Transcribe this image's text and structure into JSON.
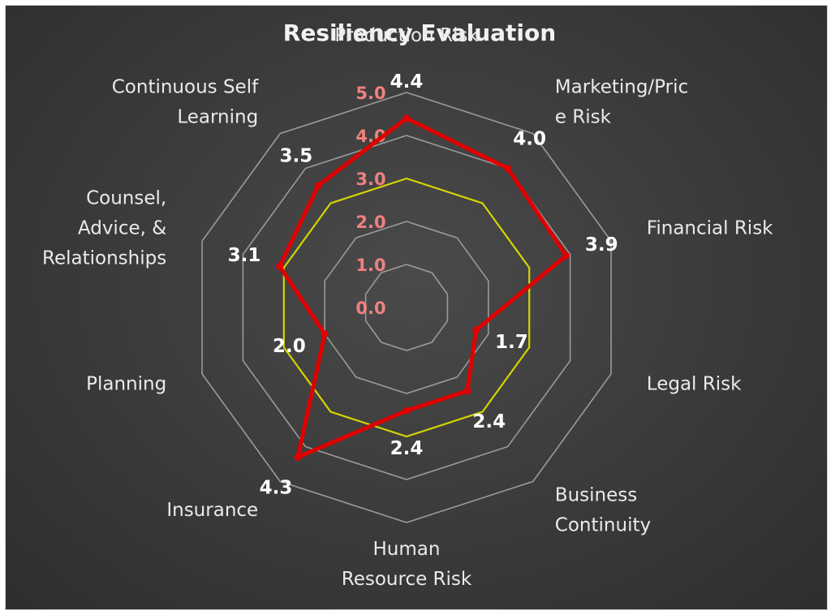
{
  "chart_data": {
    "type": "radar",
    "title": "Resiliency Evaluation",
    "categories": [
      "Production Risk",
      "Marketing/Price Risk",
      "Financial Risk",
      "Legal Risk",
      "Business Continuity",
      "Human Resource Risk",
      "Insurance",
      "Planning",
      "Counsel, Advice, & Relationships",
      "Continuous Self Learning"
    ],
    "category_label_lines": [
      [
        "Production Risk"
      ],
      [
        "Marketing/Pric",
        "e Risk"
      ],
      [
        "Financial Risk"
      ],
      [
        "Legal Risk"
      ],
      [
        "Business",
        "Continuity"
      ],
      [
        "Human",
        "Resource Risk"
      ],
      [
        "Insurance"
      ],
      [
        "Planning"
      ],
      [
        "Counsel,",
        "Advice, &",
        "Relationships"
      ],
      [
        "Continuous Self",
        "Learning"
      ]
    ],
    "series": [
      {
        "color": "#e00000",
        "values": [
          4.4,
          4.0,
          3.9,
          1.7,
          2.4,
          2.4,
          4.3,
          2.0,
          3.1,
          3.5
        ],
        "data_labels": [
          "4.4",
          "4.0",
          "3.9",
          "1.7",
          "2.4",
          "2.4",
          "4.3",
          "2.0",
          "3.1",
          "3.5"
        ]
      },
      {
        "color": "#d4d400",
        "values": [
          3.0,
          3.0,
          3.0,
          3.0,
          3.0,
          3.0,
          3.0,
          3.0,
          3.0,
          3.0
        ]
      }
    ],
    "axis": {
      "min": 0,
      "max": 5,
      "ticks": [
        0,
        1,
        2,
        3,
        4,
        5
      ],
      "tick_labels": [
        "0.0",
        "1.0",
        "2.0",
        "3.0",
        "4.0",
        "5.0"
      ],
      "tick_color": "#f08080"
    },
    "grid": true,
    "grid_color": "#9a9a9a",
    "legend": "none"
  }
}
